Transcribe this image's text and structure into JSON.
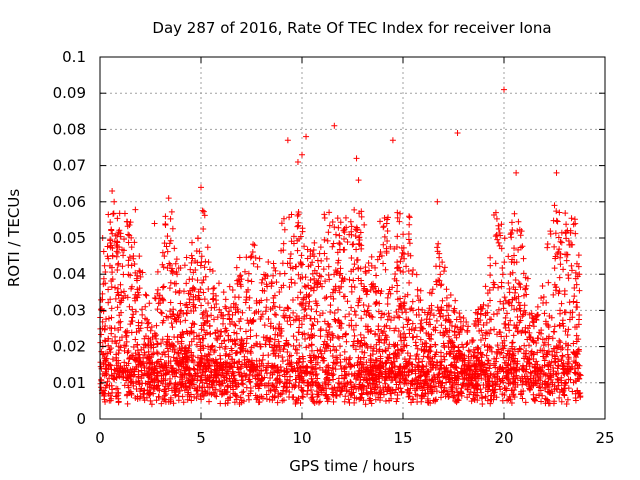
{
  "chart_data": {
    "type": "scatter",
    "title": "Day 287 of 2016, Rate Of TEC Index for receiver Iona",
    "xlabel": "GPS time / hours",
    "ylabel": "ROTI / TECUs",
    "xlim": [
      0,
      25
    ],
    "ylim": [
      0,
      0.1
    ],
    "x_ticks": [
      0,
      5,
      10,
      15,
      20,
      25
    ],
    "y_ticks": [
      0,
      0.01,
      0.02,
      0.03,
      0.04,
      0.05,
      0.06,
      0.07,
      0.08,
      0.09,
      0.1
    ],
    "x_tick_labels": [
      "0",
      "5",
      "10",
      "15",
      "20",
      "25"
    ],
    "y_tick_labels": [
      "0",
      "0.01",
      "0.02",
      "0.03",
      "0.04",
      "0.05",
      "0.06",
      "0.07",
      "0.08",
      "0.09",
      "0.1"
    ],
    "grid": true,
    "marker": "+",
    "color": "#ff0000",
    "series": [
      {
        "name": "ROTI",
        "x_range": [
          0,
          23.8
        ],
        "n_points": 4200,
        "seed": 287,
        "notable_points": [
          {
            "x": 20.0,
            "y": 0.091
          },
          {
            "x": 11.6,
            "y": 0.081
          },
          {
            "x": 17.7,
            "y": 0.079
          },
          {
            "x": 10.2,
            "y": 0.078
          },
          {
            "x": 9.3,
            "y": 0.077
          },
          {
            "x": 14.5,
            "y": 0.077
          },
          {
            "x": 10.0,
            "y": 0.073
          },
          {
            "x": 12.7,
            "y": 0.072
          },
          {
            "x": 9.8,
            "y": 0.071
          },
          {
            "x": 20.6,
            "y": 0.068
          },
          {
            "x": 22.6,
            "y": 0.068
          },
          {
            "x": 12.8,
            "y": 0.066
          },
          {
            "x": 5.0,
            "y": 0.064
          },
          {
            "x": 0.6,
            "y": 0.063
          },
          {
            "x": 3.4,
            "y": 0.061
          },
          {
            "x": 0.7,
            "y": 0.06
          },
          {
            "x": 16.7,
            "y": 0.06
          },
          {
            "x": 22.5,
            "y": 0.059
          },
          {
            "x": 19.6,
            "y": 0.057
          },
          {
            "x": 15.3,
            "y": 0.056
          },
          {
            "x": 2.7,
            "y": 0.054
          },
          {
            "x": 23.3,
            "y": 0.052
          }
        ]
      }
    ]
  }
}
